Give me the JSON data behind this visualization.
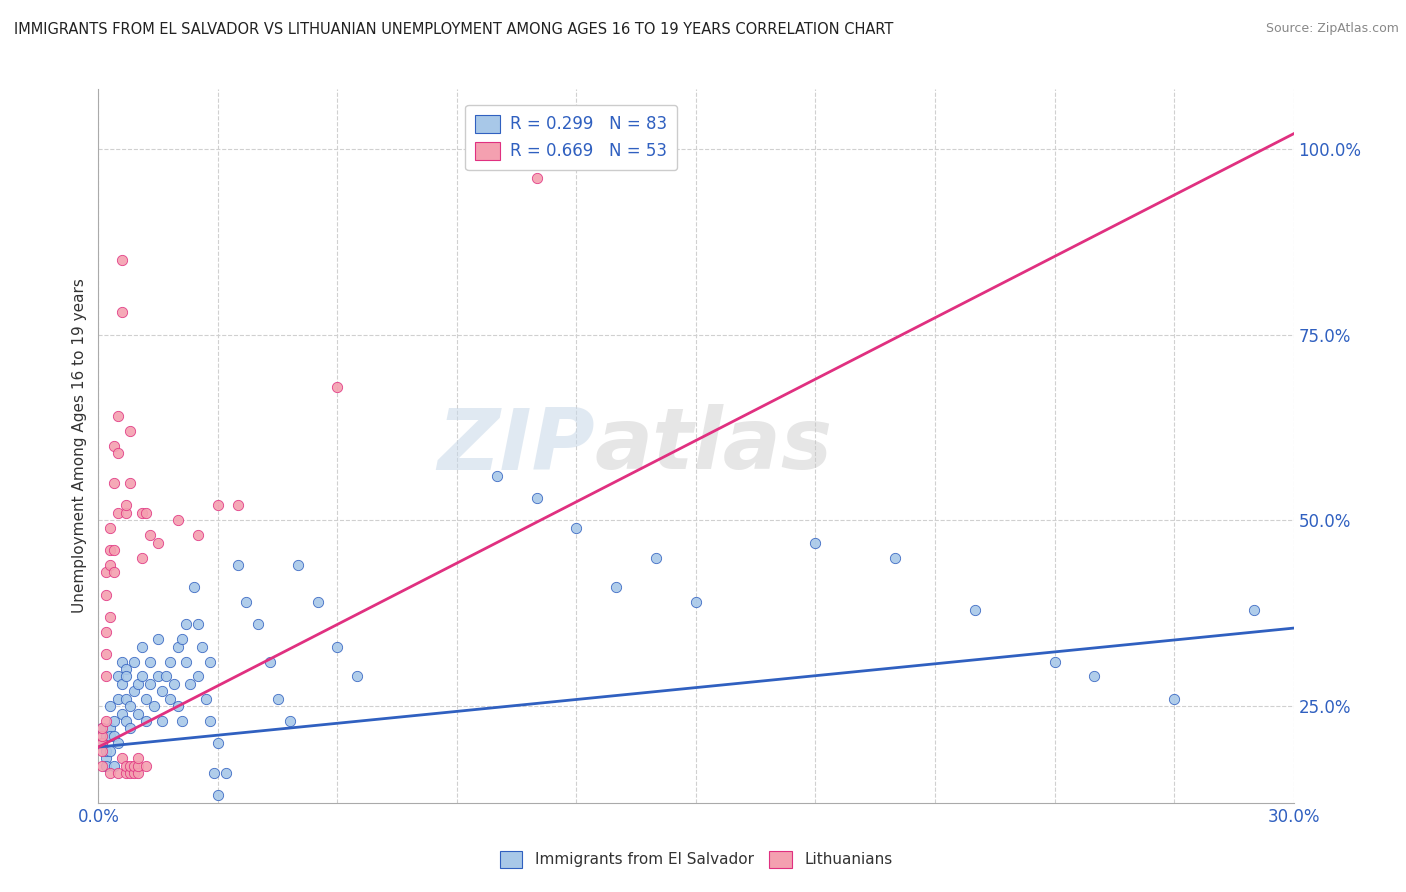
{
  "title": "IMMIGRANTS FROM EL SALVADOR VS LITHUANIAN UNEMPLOYMENT AMONG AGES 16 TO 19 YEARS CORRELATION CHART",
  "source": "Source: ZipAtlas.com",
  "ylabel": "Unemployment Among Ages 16 to 19 years",
  "legend1_label": "R = 0.299   N = 83",
  "legend2_label": "R = 0.669   N = 53",
  "legend_bottom1": "Immigrants from El Salvador",
  "legend_bottom2": "Lithuanians",
  "blue_color": "#a8c8e8",
  "pink_color": "#f4a0b0",
  "blue_line_color": "#3060c0",
  "pink_line_color": "#e03080",
  "text_color": "#3060c0",
  "grid_color": "#d0d0d0",
  "xlim": [
    0.0,
    0.3
  ],
  "ylim": [
    0.12,
    1.08
  ],
  "yticks": [
    0.25,
    0.5,
    0.75,
    1.0
  ],
  "xticks": [
    0.0,
    0.03,
    0.06,
    0.09,
    0.12,
    0.15,
    0.18,
    0.21,
    0.24,
    0.27,
    0.3
  ],
  "blue_line": [
    0.0,
    0.195,
    0.3,
    0.355
  ],
  "pink_line": [
    0.0,
    0.195,
    0.3,
    1.02
  ],
  "blue_points": [
    [
      0.001,
      0.2
    ],
    [
      0.001,
      0.22
    ],
    [
      0.002,
      0.18
    ],
    [
      0.002,
      0.21
    ],
    [
      0.002,
      0.19
    ],
    [
      0.002,
      0.17
    ],
    [
      0.003,
      0.22
    ],
    [
      0.003,
      0.19
    ],
    [
      0.003,
      0.25
    ],
    [
      0.003,
      0.21
    ],
    [
      0.004,
      0.21
    ],
    [
      0.004,
      0.17
    ],
    [
      0.004,
      0.23
    ],
    [
      0.005,
      0.29
    ],
    [
      0.005,
      0.26
    ],
    [
      0.005,
      0.2
    ],
    [
      0.006,
      0.31
    ],
    [
      0.006,
      0.28
    ],
    [
      0.006,
      0.24
    ],
    [
      0.007,
      0.3
    ],
    [
      0.007,
      0.26
    ],
    [
      0.007,
      0.23
    ],
    [
      0.007,
      0.29
    ],
    [
      0.008,
      0.25
    ],
    [
      0.008,
      0.22
    ],
    [
      0.009,
      0.27
    ],
    [
      0.009,
      0.31
    ],
    [
      0.01,
      0.24
    ],
    [
      0.01,
      0.28
    ],
    [
      0.011,
      0.33
    ],
    [
      0.011,
      0.29
    ],
    [
      0.012,
      0.26
    ],
    [
      0.012,
      0.23
    ],
    [
      0.013,
      0.31
    ],
    [
      0.013,
      0.28
    ],
    [
      0.014,
      0.25
    ],
    [
      0.015,
      0.29
    ],
    [
      0.015,
      0.34
    ],
    [
      0.016,
      0.27
    ],
    [
      0.016,
      0.23
    ],
    [
      0.017,
      0.29
    ],
    [
      0.018,
      0.26
    ],
    [
      0.018,
      0.31
    ],
    [
      0.019,
      0.28
    ],
    [
      0.02,
      0.25
    ],
    [
      0.02,
      0.33
    ],
    [
      0.021,
      0.23
    ],
    [
      0.021,
      0.34
    ],
    [
      0.022,
      0.36
    ],
    [
      0.022,
      0.31
    ],
    [
      0.023,
      0.28
    ],
    [
      0.024,
      0.41
    ],
    [
      0.025,
      0.36
    ],
    [
      0.025,
      0.29
    ],
    [
      0.026,
      0.33
    ],
    [
      0.027,
      0.26
    ],
    [
      0.028,
      0.31
    ],
    [
      0.028,
      0.23
    ],
    [
      0.029,
      0.16
    ],
    [
      0.03,
      0.2
    ],
    [
      0.03,
      0.13
    ],
    [
      0.032,
      0.16
    ],
    [
      0.035,
      0.44
    ],
    [
      0.037,
      0.39
    ],
    [
      0.04,
      0.36
    ],
    [
      0.043,
      0.31
    ],
    [
      0.045,
      0.26
    ],
    [
      0.048,
      0.23
    ],
    [
      0.05,
      0.44
    ],
    [
      0.055,
      0.39
    ],
    [
      0.06,
      0.33
    ],
    [
      0.065,
      0.29
    ],
    [
      0.1,
      0.56
    ],
    [
      0.11,
      0.53
    ],
    [
      0.12,
      0.49
    ],
    [
      0.13,
      0.41
    ],
    [
      0.14,
      0.45
    ],
    [
      0.15,
      0.39
    ],
    [
      0.18,
      0.47
    ],
    [
      0.2,
      0.45
    ],
    [
      0.22,
      0.38
    ],
    [
      0.24,
      0.31
    ],
    [
      0.25,
      0.29
    ],
    [
      0.27,
      0.26
    ],
    [
      0.29,
      0.38
    ]
  ],
  "pink_points": [
    [
      0.001,
      0.2
    ],
    [
      0.001,
      0.19
    ],
    [
      0.001,
      0.21
    ],
    [
      0.001,
      0.17
    ],
    [
      0.001,
      0.22
    ],
    [
      0.002,
      0.23
    ],
    [
      0.002,
      0.29
    ],
    [
      0.002,
      0.32
    ],
    [
      0.002,
      0.35
    ],
    [
      0.002,
      0.43
    ],
    [
      0.002,
      0.4
    ],
    [
      0.003,
      0.37
    ],
    [
      0.003,
      0.46
    ],
    [
      0.003,
      0.16
    ],
    [
      0.003,
      0.44
    ],
    [
      0.003,
      0.49
    ],
    [
      0.004,
      0.55
    ],
    [
      0.004,
      0.6
    ],
    [
      0.004,
      0.46
    ],
    [
      0.004,
      0.43
    ],
    [
      0.005,
      0.64
    ],
    [
      0.005,
      0.59
    ],
    [
      0.005,
      0.51
    ],
    [
      0.005,
      0.16
    ],
    [
      0.006,
      0.85
    ],
    [
      0.006,
      0.18
    ],
    [
      0.006,
      0.78
    ],
    [
      0.007,
      0.16
    ],
    [
      0.007,
      0.17
    ],
    [
      0.007,
      0.51
    ],
    [
      0.007,
      0.52
    ],
    [
      0.008,
      0.16
    ],
    [
      0.008,
      0.17
    ],
    [
      0.008,
      0.55
    ],
    [
      0.008,
      0.62
    ],
    [
      0.009,
      0.16
    ],
    [
      0.009,
      0.17
    ],
    [
      0.01,
      0.16
    ],
    [
      0.01,
      0.17
    ],
    [
      0.01,
      0.18
    ],
    [
      0.011,
      0.45
    ],
    [
      0.011,
      0.51
    ],
    [
      0.012,
      0.51
    ],
    [
      0.012,
      0.17
    ],
    [
      0.013,
      0.48
    ],
    [
      0.015,
      0.47
    ],
    [
      0.02,
      0.5
    ],
    [
      0.025,
      0.48
    ],
    [
      0.03,
      0.52
    ],
    [
      0.035,
      0.52
    ],
    [
      0.06,
      0.68
    ],
    [
      0.11,
      0.96
    ],
    [
      0.12,
      1.03
    ]
  ],
  "watermark_zip": "ZIP",
  "watermark_atlas": "atlas",
  "background_color": "#ffffff"
}
